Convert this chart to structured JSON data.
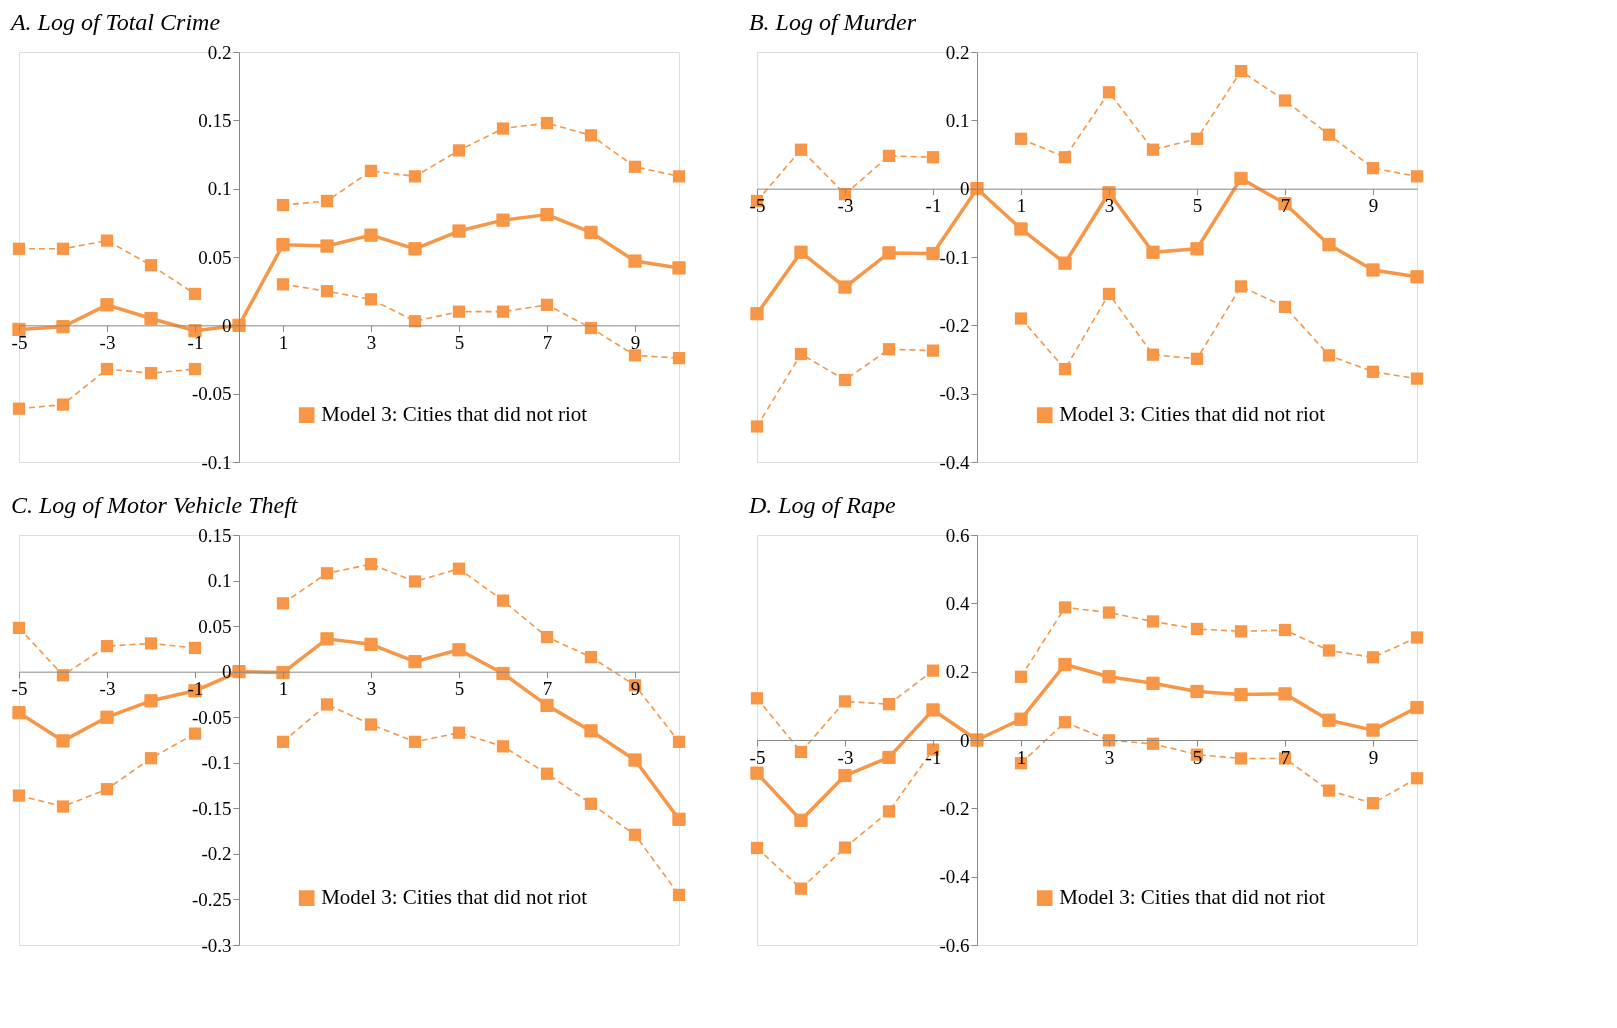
{
  "chart_data": [
    {
      "type": "line",
      "title": "A.   Log of Total Crime",
      "x": [
        -5,
        -4,
        -3,
        -2,
        -1,
        0,
        1,
        2,
        3,
        4,
        5,
        6,
        7,
        8,
        9,
        10
      ],
      "xlim": [
        -5,
        10
      ],
      "xticks": [
        -5,
        -3,
        -1,
        1,
        3,
        5,
        7,
        9
      ],
      "ylim": [
        -0.1,
        0.2
      ],
      "yticks": [
        -0.1,
        -0.05,
        0,
        0.05,
        0.1,
        0.15,
        0.2
      ],
      "marker": "square",
      "legend": "bottom",
      "series": [
        {
          "name": "Model 3: Cities that did not riot",
          "color": "#f79646",
          "line_style": "solid",
          "values": [
            -0.003,
            -0.001,
            0.015,
            0.005,
            -0.004,
            0,
            0.059,
            0.058,
            0.066,
            0.056,
            0.069,
            0.077,
            0.081,
            0.068,
            0.047,
            0.042
          ]
        },
        {
          "color": "#f79646",
          "line_style": "dashed",
          "values": [
            0.056,
            0.056,
            0.062,
            0.044,
            0.023,
            null,
            0.088,
            0.091,
            0.113,
            0.109,
            0.128,
            0.144,
            0.148,
            0.139,
            0.116,
            0.109
          ]
        },
        {
          "color": "#f79646",
          "line_style": "dashed",
          "values": [
            -0.061,
            -0.058,
            -0.032,
            -0.035,
            -0.032,
            null,
            0.03,
            0.025,
            0.019,
            0.003,
            0.01,
            0.01,
            0.015,
            -0.002,
            -0.022,
            -0.024
          ]
        }
      ]
    },
    {
      "type": "line",
      "title": "B. Log of Murder",
      "x": [
        -5,
        -4,
        -3,
        -2,
        -1,
        0,
        1,
        2,
        3,
        4,
        5,
        6,
        7,
        8,
        9,
        10
      ],
      "xlim": [
        -5,
        10
      ],
      "xticks": [
        -5,
        -3,
        -1,
        1,
        3,
        5,
        7,
        9
      ],
      "ylim": [
        -0.4,
        0.2
      ],
      "yticks": [
        -0.4,
        -0.3,
        -0.2,
        -0.1,
        0,
        0.1,
        0.2
      ],
      "marker": "square",
      "legend": "bottom",
      "series": [
        {
          "name": "Model 3: Cities that did not riot",
          "color": "#f79646",
          "line_style": "solid",
          "values": [
            -0.183,
            -0.093,
            -0.144,
            -0.094,
            -0.095,
            0,
            -0.059,
            -0.109,
            -0.006,
            -0.093,
            -0.088,
            0.015,
            -0.022,
            -0.082,
            -0.119,
            -0.129
          ]
        },
        {
          "color": "#f79646",
          "line_style": "dashed",
          "values": [
            -0.018,
            0.057,
            -0.008,
            0.048,
            0.046,
            null,
            0.073,
            0.046,
            0.141,
            0.057,
            0.073,
            0.172,
            0.129,
            0.079,
            0.03,
            0.018
          ]
        },
        {
          "color": "#f79646",
          "line_style": "dashed",
          "values": [
            -0.348,
            -0.242,
            -0.28,
            -0.235,
            -0.237,
            null,
            -0.19,
            -0.264,
            -0.154,
            -0.243,
            -0.249,
            -0.143,
            -0.173,
            -0.244,
            -0.268,
            -0.278
          ]
        }
      ]
    },
    {
      "type": "line",
      "title": "C.        Log of Motor Vehicle Theft",
      "x": [
        -5,
        -4,
        -3,
        -2,
        -1,
        0,
        1,
        2,
        3,
        4,
        5,
        6,
        7,
        8,
        9,
        10
      ],
      "xlim": [
        -5,
        10
      ],
      "xticks": [
        -5,
        -3,
        -1,
        1,
        3,
        5,
        7,
        9
      ],
      "ylim": [
        -0.3,
        0.15
      ],
      "yticks": [
        -0.3,
        -0.25,
        -0.2,
        -0.15,
        -0.1,
        -0.05,
        0,
        0.05,
        0.1,
        0.15
      ],
      "marker": "square",
      "legend": "bottom",
      "series": [
        {
          "name": "Model 3: Cities that did not riot",
          "color": "#f79646",
          "line_style": "solid",
          "values": [
            -0.045,
            -0.076,
            -0.05,
            -0.032,
            -0.021,
            0,
            -0.001,
            0.036,
            0.03,
            0.011,
            0.024,
            -0.002,
            -0.037,
            -0.065,
            -0.097,
            -0.162
          ]
        },
        {
          "color": "#f79646",
          "line_style": "dashed",
          "values": [
            0.048,
            -0.004,
            0.028,
            0.031,
            0.026,
            null,
            0.075,
            0.108,
            0.118,
            0.099,
            0.113,
            0.078,
            0.038,
            0.016,
            -0.015,
            -0.077
          ]
        },
        {
          "color": "#f79646",
          "line_style": "dashed",
          "values": [
            -0.136,
            -0.148,
            -0.129,
            -0.095,
            -0.068,
            null,
            -0.077,
            -0.036,
            -0.058,
            -0.077,
            -0.067,
            -0.082,
            -0.112,
            -0.145,
            -0.179,
            -0.245
          ]
        }
      ]
    },
    {
      "type": "line",
      "title": "D. Log of Rape",
      "x": [
        -5,
        -4,
        -3,
        -2,
        -1,
        0,
        1,
        2,
        3,
        4,
        5,
        6,
        7,
        8,
        9,
        10
      ],
      "xlim": [
        -5,
        10
      ],
      "xticks": [
        -5,
        -3,
        -1,
        1,
        3,
        5,
        7,
        9
      ],
      "ylim": [
        -0.6,
        0.6
      ],
      "yticks": [
        -0.6,
        -0.4,
        -0.2,
        0,
        0.2,
        0.4,
        0.6
      ],
      "marker": "square",
      "legend": "bottom",
      "series": [
        {
          "name": "Model 3: Cities that did not riot",
          "color": "#f79646",
          "line_style": "solid",
          "values": [
            -0.097,
            -0.235,
            -0.104,
            -0.051,
            0.088,
            0,
            0.061,
            0.221,
            0.185,
            0.166,
            0.142,
            0.133,
            0.135,
            0.058,
            0.029,
            0.095
          ]
        },
        {
          "color": "#f79646",
          "line_style": "dashed",
          "values": [
            0.122,
            -0.035,
            0.113,
            0.105,
            0.203,
            null,
            0.185,
            0.388,
            0.373,
            0.347,
            0.325,
            0.318,
            0.322,
            0.262,
            0.242,
            0.3
          ]
        },
        {
          "color": "#f79646",
          "line_style": "dashed",
          "values": [
            -0.316,
            -0.435,
            -0.315,
            -0.209,
            -0.028,
            null,
            -0.068,
            0.052,
            -0.001,
            -0.011,
            -0.043,
            -0.054,
            -0.054,
            -0.148,
            -0.185,
            -0.112
          ]
        }
      ]
    }
  ]
}
